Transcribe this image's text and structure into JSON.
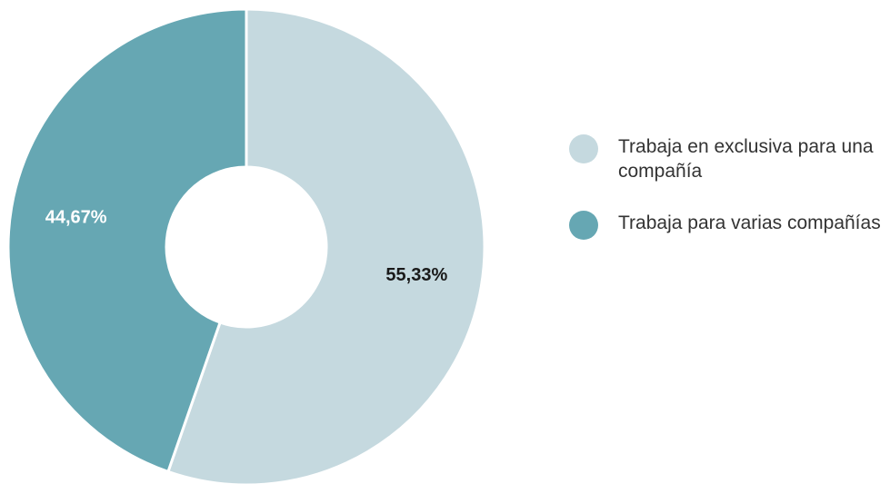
{
  "chart_data": {
    "type": "pie",
    "categories": [
      "Trabaja en exclusiva para una compañía",
      "Trabaja para varias compañías"
    ],
    "values": [
      55.33,
      44.67
    ],
    "value_labels": [
      "55,33%",
      "44,67%"
    ],
    "colors": [
      "#c5d9df",
      "#66a7b3"
    ],
    "label_colors": [
      "#1a1a1a",
      "#ffffff"
    ],
    "legend": "right"
  }
}
